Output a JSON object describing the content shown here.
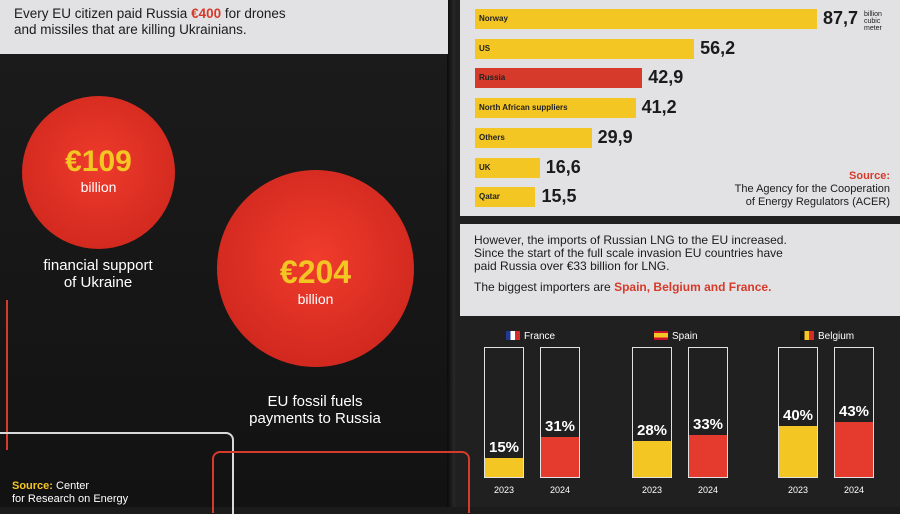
{
  "colors": {
    "accent_red": "#d63a2a",
    "accent_yellow": "#f3c623",
    "panel": "#e2e2e4",
    "background": "#1b1b1b"
  },
  "intro": {
    "line1_pre": "Every EU citizen paid Russia ",
    "line1_highlight": "€400",
    "line1_post": " for drones",
    "line2": "and missiles that are killing Ukrainians."
  },
  "circles": [
    {
      "amount": "€109",
      "unit": "billion",
      "caption_line1": "financial support",
      "caption_line2": "of Ukraine"
    },
    {
      "amount": "€204",
      "unit": "billion",
      "caption_line1": "EU fossil fuels",
      "caption_line2": "payments to Russia"
    }
  ],
  "left_source": {
    "label": "Source:",
    "line1": "Center",
    "line2": "for Research on Energy"
  },
  "lng_text": {
    "line1": "However, the imports of Russian LNG to the EU increased.",
    "line2": "Since the start of the full scale invasion EU countries have",
    "line3": "paid Russia over €33 billion for LNG.",
    "importers_pre": "The biggest importers are ",
    "importers_highlight": "Spain, Belgium and France."
  },
  "chart_data": [
    {
      "type": "bar",
      "orientation": "horizontal",
      "categories": [
        "Norway",
        "US",
        "Russia",
        "North African suppliers",
        "Others",
        "UK",
        "Qatar"
      ],
      "values": [
        87.7,
        56.2,
        42.9,
        41.2,
        29.9,
        16.6,
        15.5
      ],
      "value_labels": [
        "87,7",
        "56,2",
        "42,9",
        "41,2",
        "29,9",
        "16,6",
        "15,5"
      ],
      "unit_label": [
        "billion",
        "cubic",
        "meter"
      ],
      "bar_colors": [
        "#f3c623",
        "#f3c623",
        "#d63a2a",
        "#f3c623",
        "#f3c623",
        "#f3c623",
        "#f3c623"
      ],
      "source_label": "Source:",
      "source_line1": "The Agency for the Cooperation",
      "source_line2": "of Energy Regulators (ACER)"
    },
    {
      "type": "bar",
      "groups": [
        {
          "country": "France",
          "flag": [
            "#1f3a93",
            "#ffffff",
            "#d62b2b"
          ],
          "years": [
            "2023",
            "2024"
          ],
          "values": [
            15,
            31
          ],
          "labels": [
            "15%",
            "31%"
          ],
          "colors": [
            "#f3c623",
            "#e53a2e"
          ]
        },
        {
          "country": "Spain",
          "flag": [
            "#c8102e",
            "#f3c623",
            "#c8102e"
          ],
          "years": [
            "2023",
            "2024"
          ],
          "values": [
            28,
            33
          ],
          "labels": [
            "28%",
            "33%"
          ],
          "colors": [
            "#f3c623",
            "#e53a2e"
          ]
        },
        {
          "country": "Belgium",
          "flag": [
            "#111111",
            "#f3c623",
            "#d62b2b"
          ],
          "years": [
            "2023",
            "2024"
          ],
          "values": [
            40,
            43
          ],
          "labels": [
            "40%",
            "43%"
          ],
          "colors": [
            "#f3c623",
            "#e53a2e"
          ]
        }
      ],
      "ylim": [
        0,
        100
      ]
    }
  ]
}
